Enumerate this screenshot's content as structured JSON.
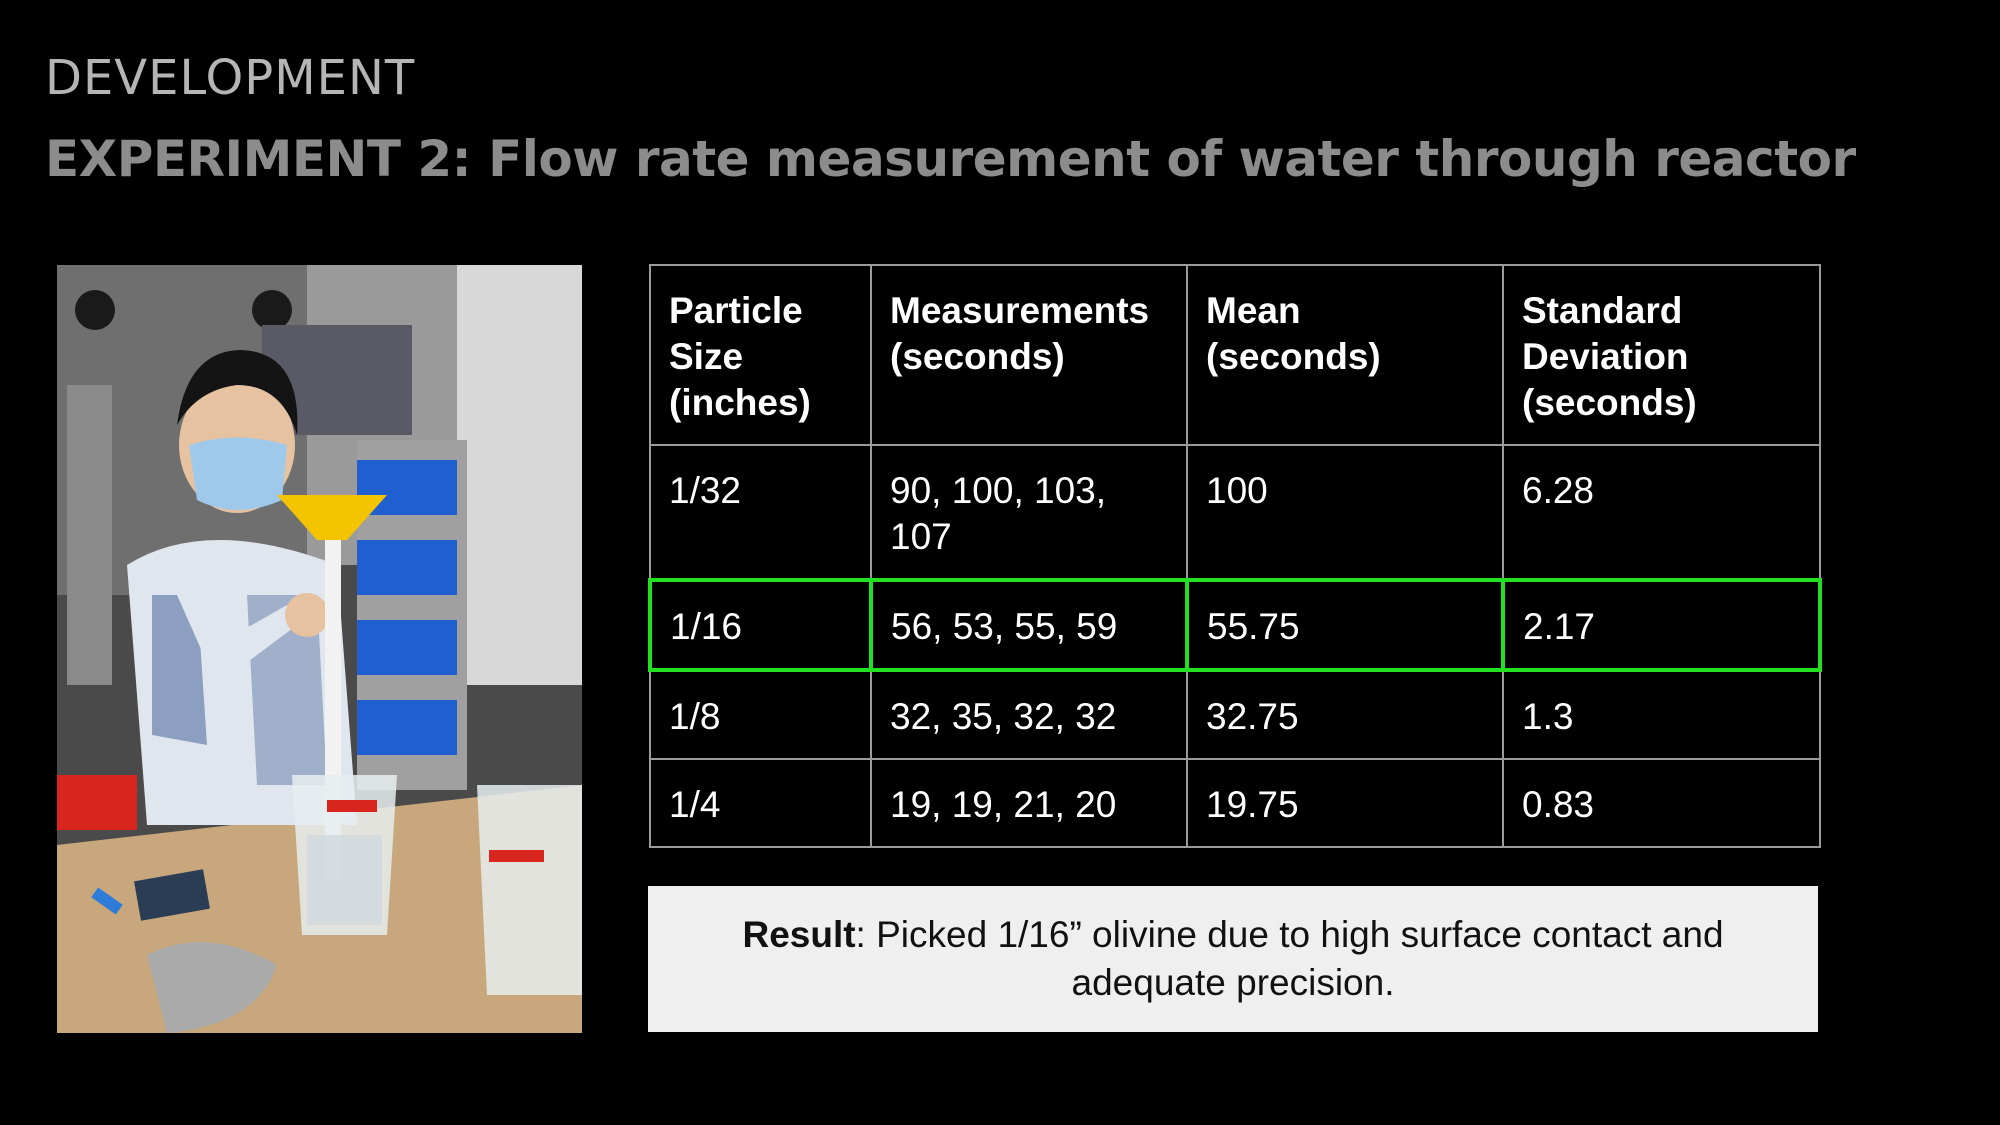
{
  "header": {
    "section": "DEVELOPMENT",
    "title": "EXPERIMENT 2: Flow rate measurement of water through reactor"
  },
  "table": {
    "headers": [
      "Particle Size (inches)",
      "Measurements (seconds)",
      "Mean (seconds)",
      "Standard Deviation (seconds)"
    ],
    "rows": [
      {
        "size": "1/32",
        "measurements": "90, 100, 103, 107",
        "mean": "100",
        "std": "6.28",
        "highlighted": false
      },
      {
        "size": "1/16",
        "measurements": "56, 53, 55, 59",
        "mean": "55.75",
        "std": "2.17",
        "highlighted": true
      },
      {
        "size": "1/8",
        "measurements": "32, 35, 32, 32",
        "mean": "32.75",
        "std": "1.3",
        "highlighted": false
      },
      {
        "size": "1/4",
        "measurements": "19, 19, 21, 20",
        "mean": "19.75",
        "std": "0.83",
        "highlighted": false
      }
    ],
    "highlight_color": "#22e022"
  },
  "result": {
    "label": "Result",
    "text": ": Picked 1/16” olivine due to high surface contact and adequate precision."
  },
  "colors": {
    "background": "#000000",
    "section": "#b5b5b5",
    "title": "#8c8c8c",
    "result_bg": "#efefef"
  }
}
